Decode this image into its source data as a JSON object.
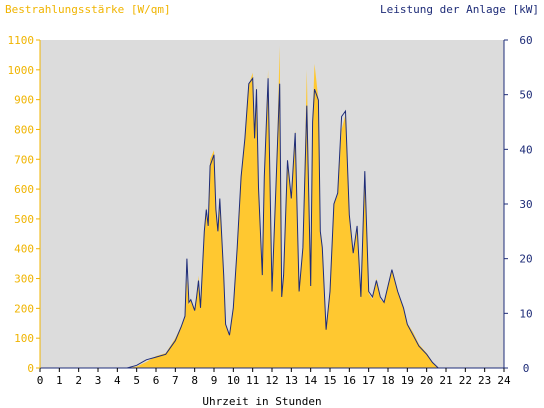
{
  "chart_data": {
    "type": "area",
    "left_axis_title": "Bestrahlungsstärke [W/qm]",
    "right_axis_title": "Leistung der Anlage [kW]",
    "xlabel": "Uhrzeit in Stunden",
    "x_ticks": [
      "0",
      "1",
      "2",
      "3",
      "4",
      "5",
      "6",
      "7",
      "8",
      "9",
      "10",
      "11",
      "12",
      "13",
      "14",
      "15",
      "16",
      "17",
      "18",
      "19",
      "20",
      "21",
      "22",
      "23",
      "24"
    ],
    "left_ticks": [
      "0",
      "100",
      "200",
      "300",
      "400",
      "500",
      "600",
      "700",
      "800",
      "900",
      "1000",
      "1100"
    ],
    "right_ticks": [
      "0",
      "10",
      "20",
      "30",
      "40",
      "50",
      "60"
    ],
    "xlim": [
      0,
      24
    ],
    "ylim_left": [
      0,
      1100
    ],
    "ylim_right": [
      0,
      60
    ],
    "grid": false,
    "colors": {
      "plot_bg": "#dcdcdc",
      "irradiance_fill": "#ffc830",
      "irradiance_text": "#f0b400",
      "power_line": "#1e2c78",
      "axis_text": "#000000"
    },
    "series": [
      {
        "axis": "left",
        "style": "filled-area",
        "x": [
          0,
          4.5,
          5,
          5.5,
          6,
          6.5,
          7,
          7.3,
          7.5,
          7.6,
          7.7,
          7.8,
          8,
          8.1,
          8.2,
          8.3,
          8.5,
          8.6,
          8.7,
          8.8,
          9,
          9.1,
          9.2,
          9.3,
          9.5,
          9.6,
          9.8,
          10,
          10.2,
          10.4,
          10.6,
          10.8,
          11,
          11.1,
          11.2,
          11.3,
          11.5,
          11.6,
          11.8,
          12,
          12.2,
          12.4,
          12.5,
          12.6,
          12.8,
          13,
          13.2,
          13.4,
          13.6,
          13.8,
          14,
          14.1,
          14.2,
          14.3,
          14.4,
          14.5,
          14.6,
          14.8,
          15,
          15.2,
          15.4,
          15.6,
          15.8,
          16,
          16.2,
          16.4,
          16.6,
          16.8,
          17,
          17.2,
          17.4,
          17.6,
          17.8,
          18,
          18.2,
          18.5,
          18.8,
          19,
          19.3,
          19.6,
          20,
          20.3,
          20.6,
          21,
          24
        ],
        "values": [
          0,
          0,
          5,
          20,
          40,
          50,
          100,
          140,
          170,
          300,
          210,
          230,
          190,
          240,
          310,
          200,
          450,
          540,
          470,
          700,
          730,
          540,
          450,
          570,
          300,
          150,
          110,
          200,
          400,
          650,
          770,
          950,
          990,
          760,
          950,
          600,
          300,
          640,
          1000,
          250,
          600,
          1080,
          240,
          300,
          700,
          560,
          800,
          250,
          400,
          1000,
          280,
          830,
          1020,
          960,
          900,
          450,
          400,
          130,
          260,
          550,
          580,
          800,
          850,
          500,
          380,
          480,
          230,
          650,
          250,
          230,
          300,
          230,
          220,
          280,
          330,
          260,
          200,
          150,
          120,
          80,
          50,
          20,
          0,
          0,
          0
        ]
      },
      {
        "axis": "right",
        "style": "line",
        "x": [
          0,
          4.5,
          5,
          5.5,
          6,
          6.5,
          7,
          7.3,
          7.5,
          7.6,
          7.7,
          7.8,
          8,
          8.1,
          8.2,
          8.3,
          8.5,
          8.6,
          8.7,
          8.8,
          9,
          9.1,
          9.2,
          9.3,
          9.5,
          9.6,
          9.8,
          10,
          10.2,
          10.4,
          10.6,
          10.8,
          11,
          11.1,
          11.2,
          11.3,
          11.5,
          11.6,
          11.8,
          12,
          12.2,
          12.4,
          12.5,
          12.6,
          12.8,
          13,
          13.2,
          13.4,
          13.6,
          13.8,
          14,
          14.1,
          14.2,
          14.3,
          14.4,
          14.5,
          14.6,
          14.8,
          15,
          15.2,
          15.4,
          15.6,
          15.8,
          16,
          16.2,
          16.4,
          16.6,
          16.8,
          17,
          17.2,
          17.4,
          17.6,
          17.8,
          18,
          18.2,
          18.5,
          18.8,
          19,
          19.3,
          19.6,
          20,
          20.3,
          20.6,
          21,
          24
        ],
        "values": [
          0,
          0,
          0.5,
          1.5,
          2,
          2.5,
          5,
          7.5,
          9.5,
          20,
          12,
          12.5,
          10.5,
          13,
          16,
          11,
          25,
          29,
          26,
          37,
          39,
          29,
          25,
          31,
          17,
          8,
          6,
          11,
          22,
          35,
          42,
          52,
          53,
          42,
          51,
          33,
          17,
          35,
          53,
          14,
          33,
          52,
          13,
          17,
          38,
          31,
          43,
          14,
          22,
          48,
          15,
          45,
          51,
          50,
          49,
          25,
          22,
          7,
          14,
          30,
          32,
          46,
          47,
          28,
          21,
          26,
          13,
          36,
          14,
          13,
          16,
          13,
          12,
          15,
          18,
          14,
          11,
          8,
          6,
          4,
          2.5,
          1,
          0,
          0,
          0
        ]
      }
    ]
  }
}
